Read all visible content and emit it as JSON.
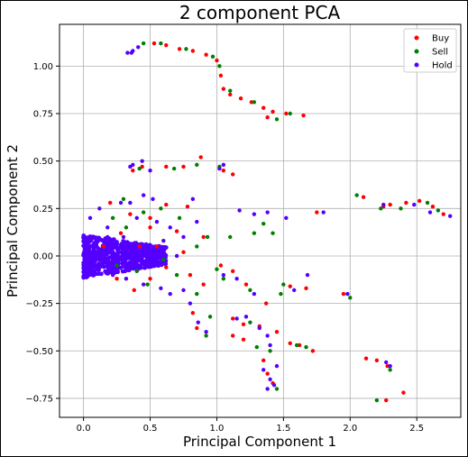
{
  "chart_data": {
    "type": "scatter",
    "title": "2 component PCA",
    "xlabel": "Principal Component 1",
    "ylabel": "Principal Component 2",
    "xlim": [
      -0.18,
      2.83
    ],
    "ylim": [
      -0.85,
      1.22
    ],
    "xticks": [
      0.0,
      0.5,
      1.0,
      1.5,
      2.0,
      2.5
    ],
    "xtick_labels": [
      "0.0",
      "0.5",
      "1.0",
      "1.5",
      "2.0",
      "2.5"
    ],
    "yticks": [
      -0.75,
      -0.5,
      -0.25,
      0.0,
      0.25,
      0.5,
      0.75,
      1.0
    ],
    "ytick_labels": [
      "−0.75",
      "−0.50",
      "−0.25",
      "0.00",
      "0.25",
      "0.50",
      "0.75",
      "1.00"
    ],
    "grid": true,
    "legend_position": "top-right",
    "series": [
      {
        "name": "Buy",
        "color": "#ff0000",
        "points": [
          [
            0.53,
            1.12
          ],
          [
            0.62,
            1.11
          ],
          [
            0.72,
            1.09
          ],
          [
            0.82,
            1.08
          ],
          [
            0.92,
            1.06
          ],
          [
            1.0,
            1.03
          ],
          [
            1.03,
            0.95
          ],
          [
            1.05,
            0.88
          ],
          [
            1.1,
            0.85
          ],
          [
            1.18,
            0.83
          ],
          [
            1.26,
            0.81
          ],
          [
            1.35,
            0.78
          ],
          [
            1.42,
            0.76
          ],
          [
            1.52,
            0.75
          ],
          [
            1.65,
            0.74
          ],
          [
            1.38,
            0.73
          ],
          [
            0.37,
            0.45
          ],
          [
            0.44,
            0.47
          ],
          [
            0.62,
            0.47
          ],
          [
            0.75,
            0.47
          ],
          [
            0.88,
            0.52
          ],
          [
            1.05,
            0.45
          ],
          [
            1.12,
            0.43
          ],
          [
            1.75,
            0.23
          ],
          [
            2.1,
            0.31
          ],
          [
            2.25,
            0.26
          ],
          [
            2.3,
            0.27
          ],
          [
            2.42,
            0.28
          ],
          [
            2.52,
            0.29
          ],
          [
            2.62,
            0.26
          ],
          [
            2.7,
            0.22
          ],
          [
            0.2,
            0.28
          ],
          [
            0.35,
            0.22
          ],
          [
            0.5,
            0.2
          ],
          [
            0.62,
            0.27
          ],
          [
            0.78,
            0.26
          ],
          [
            0.5,
            0.15
          ],
          [
            0.7,
            0.13
          ],
          [
            0.9,
            0.1
          ],
          [
            0.55,
            0.05
          ],
          [
            0.75,
            0.02
          ],
          [
            0.62,
            -0.06
          ],
          [
            0.8,
            -0.1
          ],
          [
            0.9,
            -0.15
          ],
          [
            0.5,
            -0.12
          ],
          [
            0.38,
            -0.18
          ],
          [
            0.25,
            -0.12
          ],
          [
            0.28,
            0.12
          ],
          [
            0.15,
            0.05
          ],
          [
            0.42,
            0.05
          ],
          [
            1.03,
            -0.05
          ],
          [
            1.12,
            -0.08
          ],
          [
            1.22,
            -0.15
          ],
          [
            1.37,
            -0.25
          ],
          [
            1.55,
            -0.16
          ],
          [
            1.67,
            -0.17
          ],
          [
            0.82,
            -0.3
          ],
          [
            0.85,
            -0.38
          ],
          [
            1.12,
            -0.33
          ],
          [
            1.2,
            -0.36
          ],
          [
            1.32,
            -0.37
          ],
          [
            1.45,
            -0.4
          ],
          [
            1.55,
            -0.46
          ],
          [
            1.62,
            -0.47
          ],
          [
            1.72,
            -0.5
          ],
          [
            1.12,
            -0.42
          ],
          [
            1.2,
            -0.44
          ],
          [
            1.35,
            -0.55
          ],
          [
            1.38,
            -0.62
          ],
          [
            1.42,
            -0.67
          ],
          [
            1.95,
            -0.2
          ],
          [
            2.12,
            -0.54
          ],
          [
            2.2,
            -0.55
          ],
          [
            2.28,
            -0.58
          ],
          [
            2.4,
            -0.72
          ],
          [
            2.27,
            -0.76
          ]
        ]
      },
      {
        "name": "Sell",
        "color": "#008000",
        "points": [
          [
            0.45,
            1.12
          ],
          [
            0.58,
            1.12
          ],
          [
            0.77,
            1.09
          ],
          [
            0.97,
            1.05
          ],
          [
            1.02,
            1.0
          ],
          [
            1.1,
            0.87
          ],
          [
            1.28,
            0.81
          ],
          [
            1.45,
            0.72
          ],
          [
            1.55,
            0.75
          ],
          [
            0.42,
            0.46
          ],
          [
            0.68,
            0.46
          ],
          [
            0.85,
            0.48
          ],
          [
            1.02,
            0.47
          ],
          [
            2.05,
            0.32
          ],
          [
            2.23,
            0.25
          ],
          [
            2.38,
            0.25
          ],
          [
            2.58,
            0.28
          ],
          [
            2.66,
            0.24
          ],
          [
            0.3,
            0.3
          ],
          [
            0.45,
            0.23
          ],
          [
            0.58,
            0.25
          ],
          [
            0.72,
            0.2
          ],
          [
            0.93,
            0.1
          ],
          [
            0.85,
            0.05
          ],
          [
            0.6,
            -0.02
          ],
          [
            0.7,
            -0.1
          ],
          [
            0.85,
            -0.2
          ],
          [
            0.4,
            -0.08
          ],
          [
            0.48,
            -0.15
          ],
          [
            0.32,
            0.15
          ],
          [
            0.22,
            0.2
          ],
          [
            0.25,
            -0.05
          ],
          [
            1.0,
            -0.07
          ],
          [
            1.05,
            -0.12
          ],
          [
            1.25,
            -0.18
          ],
          [
            1.5,
            -0.15
          ],
          [
            1.48,
            -0.2
          ],
          [
            1.28,
            0.12
          ],
          [
            1.35,
            0.17
          ],
          [
            1.42,
            0.12
          ],
          [
            1.1,
            0.1
          ],
          [
            0.92,
            -0.42
          ],
          [
            0.95,
            -0.32
          ],
          [
            1.25,
            -0.35
          ],
          [
            1.4,
            -0.5
          ],
          [
            1.6,
            -0.47
          ],
          [
            1.67,
            -0.48
          ],
          [
            1.3,
            -0.48
          ],
          [
            2.0,
            -0.22
          ],
          [
            2.3,
            -0.6
          ],
          [
            2.2,
            -0.76
          ],
          [
            1.45,
            -0.7
          ]
        ]
      },
      {
        "name": "Hold",
        "color": "#5500ff",
        "points": [
          [
            0.33,
            1.07
          ],
          [
            0.37,
            1.08
          ],
          [
            0.41,
            1.1
          ],
          [
            0.36,
            1.07
          ],
          [
            0.37,
            0.48
          ],
          [
            0.35,
            0.47
          ],
          [
            0.44,
            0.5
          ],
          [
            0.5,
            0.45
          ],
          [
            1.05,
            0.48
          ],
          [
            1.02,
            0.46
          ],
          [
            1.17,
            0.24
          ],
          [
            1.28,
            0.22
          ],
          [
            1.38,
            0.23
          ],
          [
            1.52,
            0.2
          ],
          [
            1.8,
            0.23
          ],
          [
            2.25,
            0.27
          ],
          [
            2.48,
            0.27
          ],
          [
            2.6,
            0.23
          ],
          [
            2.75,
            0.21
          ],
          [
            0.05,
            0.2
          ],
          [
            0.12,
            0.25
          ],
          [
            0.18,
            0.15
          ],
          [
            0.2,
            0.05
          ],
          [
            0.1,
            -0.05
          ],
          [
            0.3,
            0.1
          ],
          [
            0.35,
            0.28
          ],
          [
            0.28,
            0.28
          ],
          [
            0.45,
            0.32
          ],
          [
            0.52,
            0.3
          ],
          [
            0.4,
            0.2
          ],
          [
            0.55,
            0.18
          ],
          [
            0.65,
            0.15
          ],
          [
            0.75,
            0.1
          ],
          [
            0.6,
            0.08
          ],
          [
            0.7,
            0.0
          ],
          [
            0.5,
            -0.05
          ],
          [
            0.45,
            -0.15
          ],
          [
            0.58,
            -0.17
          ],
          [
            0.65,
            -0.2
          ],
          [
            0.75,
            -0.18
          ],
          [
            0.8,
            -0.25
          ],
          [
            0.32,
            -0.12
          ],
          [
            0.22,
            -0.1
          ],
          [
            0.18,
            0.1
          ],
          [
            0.08,
            0.1
          ],
          [
            0.85,
            0.18
          ],
          [
            0.82,
            0.3
          ],
          [
            1.05,
            -0.1
          ],
          [
            1.15,
            -0.12
          ],
          [
            1.28,
            -0.2
          ],
          [
            1.58,
            -0.18
          ],
          [
            1.68,
            -0.1
          ],
          [
            0.86,
            -0.35
          ],
          [
            0.92,
            -0.4
          ],
          [
            1.15,
            -0.33
          ],
          [
            1.22,
            -0.32
          ],
          [
            1.32,
            -0.38
          ],
          [
            1.38,
            -0.42
          ],
          [
            1.4,
            -0.47
          ],
          [
            1.45,
            -0.58
          ],
          [
            1.4,
            -0.65
          ],
          [
            1.38,
            -0.7
          ],
          [
            1.43,
            -0.68
          ],
          [
            1.35,
            -0.6
          ],
          [
            1.98,
            -0.2
          ],
          [
            2.27,
            -0.56
          ],
          [
            2.3,
            -0.58
          ]
        ]
      }
    ]
  }
}
